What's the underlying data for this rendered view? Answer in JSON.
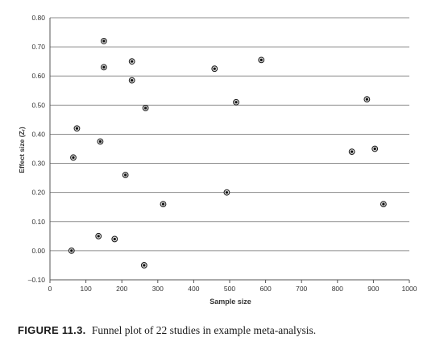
{
  "chart_data": {
    "type": "scatter",
    "title": "",
    "xlabel": "Sample size",
    "ylabel": "Effect size (Zᵣ)",
    "xlim": [
      0,
      1000
    ],
    "ylim": [
      -0.1,
      0.8
    ],
    "x_ticks": [
      "0",
      "100",
      "200",
      "300",
      "400",
      "500",
      "600",
      "700",
      "800",
      "900",
      "1000"
    ],
    "y_ticks": [
      "–0.10",
      "0.00",
      "0.10",
      "0.20",
      "0.30",
      "0.40",
      "0.50",
      "0.60",
      "0.70",
      "0.80"
    ],
    "grid": "horizontal",
    "points": [
      {
        "x": 60,
        "y": 0.0
      },
      {
        "x": 65,
        "y": 0.32
      },
      {
        "x": 75,
        "y": 0.42
      },
      {
        "x": 135,
        "y": 0.05
      },
      {
        "x": 140,
        "y": 0.375
      },
      {
        "x": 150,
        "y": 0.72
      },
      {
        "x": 150,
        "y": 0.63
      },
      {
        "x": 180,
        "y": 0.04
      },
      {
        "x": 210,
        "y": 0.26
      },
      {
        "x": 228,
        "y": 0.65
      },
      {
        "x": 228,
        "y": 0.585
      },
      {
        "x": 262,
        "y": -0.05
      },
      {
        "x": 266,
        "y": 0.49
      },
      {
        "x": 315,
        "y": 0.16
      },
      {
        "x": 458,
        "y": 0.625
      },
      {
        "x": 492,
        "y": 0.2
      },
      {
        "x": 518,
        "y": 0.51
      },
      {
        "x": 588,
        "y": 0.655
      },
      {
        "x": 840,
        "y": 0.34
      },
      {
        "x": 882,
        "y": 0.52
      },
      {
        "x": 904,
        "y": 0.35
      },
      {
        "x": 928,
        "y": 0.16
      }
    ]
  },
  "caption": {
    "label": "FIGURE 11.3.",
    "text": "Funnel plot of 22 studies in example meta-analysis."
  }
}
